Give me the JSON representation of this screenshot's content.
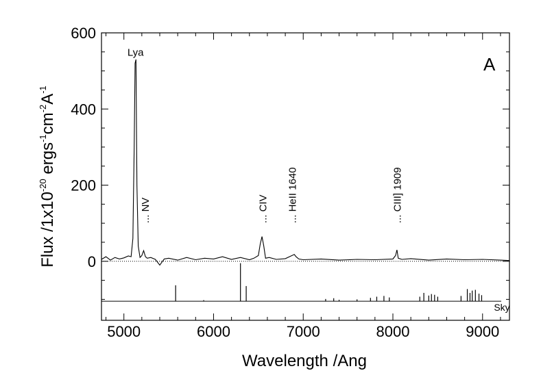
{
  "chart_data": {
    "type": "line",
    "panel_label": "A",
    "xlabel": "Wavelength /Ang",
    "ylabel_parts": {
      "a": "Flux /1x10",
      "exp1": "-20",
      "b": " ergs",
      "exp2": "-1",
      "c": "cm",
      "exp3": "-2",
      "d": "A",
      "exp4": "-1"
    },
    "xlim": [
      4750,
      9300
    ],
    "ylim": [
      -155,
      600
    ],
    "xticks": [
      5000,
      6000,
      7000,
      8000,
      9000
    ],
    "yticks": [
      0,
      200,
      400,
      600
    ],
    "zero_line": "dotted",
    "series": [
      {
        "role": "object spectrum",
        "x": [
          4750,
          4800,
          4850,
          4900,
          4950,
          5000,
          5050,
          5080,
          5100,
          5115,
          5125,
          5135,
          5145,
          5160,
          5180,
          5200,
          5220,
          5240,
          5260,
          5300,
          5350,
          5400,
          5450,
          5500,
          5600,
          5700,
          5800,
          5900,
          6000,
          6100,
          6200,
          6300,
          6400,
          6450,
          6500,
          6520,
          6540,
          6560,
          6580,
          6620,
          6700,
          6800,
          6900,
          6920,
          6950,
          7000,
          7200,
          7400,
          7600,
          7800,
          8000,
          8030,
          8045,
          8060,
          8100,
          8200,
          8400,
          8600,
          8800,
          9000,
          9200,
          9300
        ],
        "y": [
          5,
          12,
          3,
          10,
          6,
          9,
          14,
          12,
          60,
          300,
          520,
          530,
          200,
          40,
          10,
          15,
          28,
          12,
          8,
          10,
          5,
          -10,
          6,
          8,
          3,
          10,
          4,
          8,
          6,
          12,
          5,
          10,
          4,
          8,
          15,
          45,
          65,
          40,
          8,
          10,
          5,
          7,
          18,
          12,
          6,
          4,
          6,
          3,
          5,
          4,
          6,
          15,
          30,
          8,
          5,
          7,
          3,
          6,
          4,
          5,
          3,
          2
        ]
      }
    ],
    "annotations": [
      {
        "label": "Lya",
        "x": 5130,
        "y": 540,
        "orientation": "horizontal"
      },
      {
        "label": "... NV",
        "x": 5240,
        "y": 100,
        "orientation": "vertical"
      },
      {
        "label": "... CIV",
        "x": 6550,
        "y": 100,
        "orientation": "vertical"
      },
      {
        "label": "... HeII 1640",
        "x": 6880,
        "y": 100,
        "orientation": "vertical"
      },
      {
        "label": "... CIII] 1909",
        "x": 8050,
        "y": 100,
        "orientation": "vertical"
      }
    ],
    "sky_label": "Sky",
    "sky_baseline": -105,
    "sky_lines": [
      {
        "x": 5577,
        "h": 42
      },
      {
        "x": 5890,
        "h": 3
      },
      {
        "x": 6300,
        "h": 100
      },
      {
        "x": 6364,
        "h": 40
      },
      {
        "x": 7250,
        "h": 6
      },
      {
        "x": 7340,
        "h": 8
      },
      {
        "x": 7400,
        "h": 4
      },
      {
        "x": 7600,
        "h": 5
      },
      {
        "x": 7750,
        "h": 9
      },
      {
        "x": 7820,
        "h": 12
      },
      {
        "x": 7900,
        "h": 14
      },
      {
        "x": 7960,
        "h": 10
      },
      {
        "x": 8300,
        "h": 12
      },
      {
        "x": 8345,
        "h": 22
      },
      {
        "x": 8400,
        "h": 15
      },
      {
        "x": 8430,
        "h": 19
      },
      {
        "x": 8465,
        "h": 17
      },
      {
        "x": 8500,
        "h": 12
      },
      {
        "x": 8760,
        "h": 14
      },
      {
        "x": 8830,
        "h": 32
      },
      {
        "x": 8860,
        "h": 22
      },
      {
        "x": 8885,
        "h": 28
      },
      {
        "x": 8920,
        "h": 30
      },
      {
        "x": 8960,
        "h": 20
      },
      {
        "x": 8990,
        "h": 16
      }
    ]
  }
}
